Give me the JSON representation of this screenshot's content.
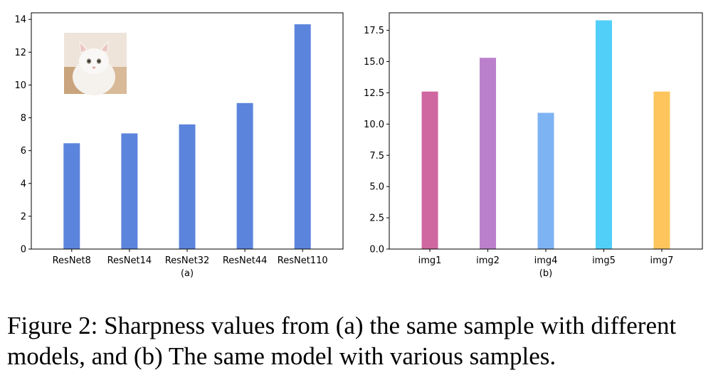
{
  "chart_data": [
    {
      "type": "bar",
      "xlabel": "(a)",
      "ylabel": "",
      "categories": [
        "ResNet8",
        "ResNet14",
        "ResNet32",
        "ResNet44",
        "ResNet110"
      ],
      "values": [
        6.45,
        7.05,
        7.6,
        8.9,
        13.7
      ],
      "ylim": [
        0,
        14.4
      ],
      "yticks": [
        0,
        2,
        4,
        6,
        8,
        10,
        12,
        14
      ],
      "ytick_labels": [
        "0",
        "2",
        "4",
        "6",
        "8",
        "10",
        "12",
        "14"
      ],
      "colors": [
        "#5b84dc",
        "#5b84dc",
        "#5b84dc",
        "#5b84dc",
        "#5b84dc"
      ],
      "grid": false,
      "inset_image": "white-cat-photo"
    },
    {
      "type": "bar",
      "xlabel": "(b)",
      "ylabel": "",
      "categories": [
        "img1",
        "img2",
        "img4",
        "img5",
        "img7"
      ],
      "values": [
        12.6,
        15.3,
        10.9,
        18.3,
        12.6
      ],
      "ylim": [
        0,
        18.9
      ],
      "yticks": [
        0,
        2.5,
        5,
        7.5,
        10,
        12.5,
        15,
        17.5
      ],
      "ytick_labels": [
        "0.0",
        "2.5",
        "5.0",
        "7.5",
        "10.0",
        "12.5",
        "15.0",
        "17.5"
      ],
      "colors": [
        "#cf67a0",
        "#bb80cb",
        "#7db3f3",
        "#52cff9",
        "#fdc55c"
      ],
      "grid": false
    }
  ],
  "caption": "Figure 2: Sharpness values from (a) the same sample with different models, and (b) The same model with various samples."
}
